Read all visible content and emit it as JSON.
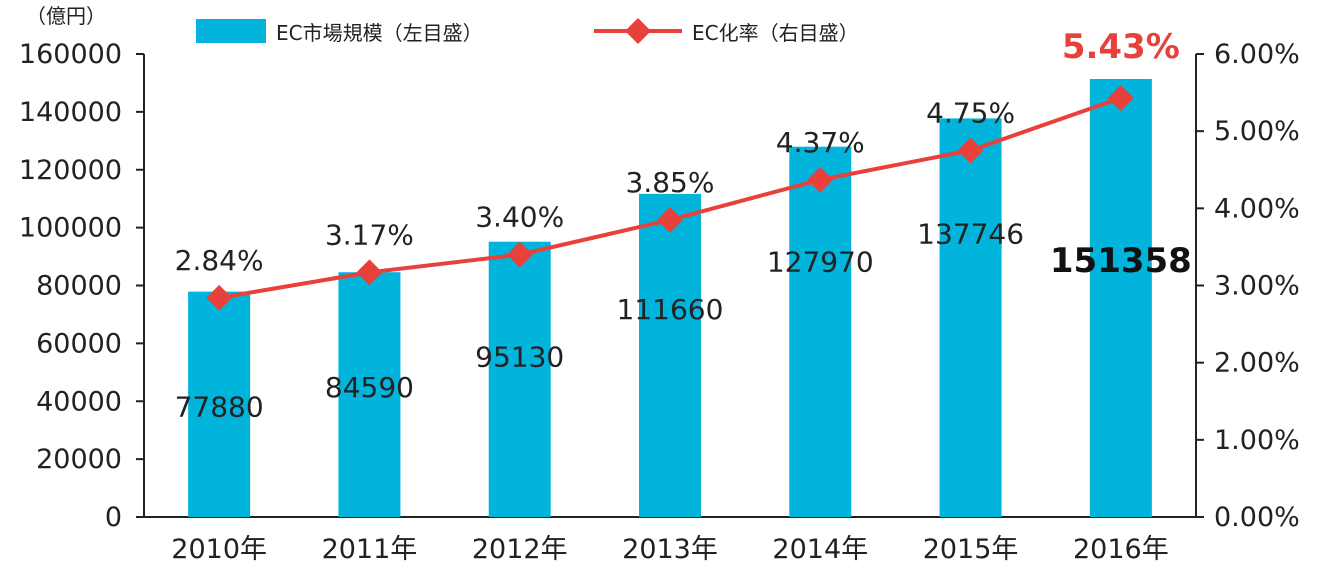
{
  "chart_data": {
    "type": "bar",
    "categories": [
      "2010年",
      "2011年",
      "2012年",
      "2013年",
      "2014年",
      "2015年",
      "2016年"
    ],
    "y_left_unit": "（億円）",
    "y_left_ticks": [
      "0",
      "20000",
      "40000",
      "60000",
      "80000",
      "100000",
      "120000",
      "140000",
      "160000"
    ],
    "y_right_ticks": [
      "0.00%",
      "1.00%",
      "2.00%",
      "3.00%",
      "4.00%",
      "5.00%",
      "6.00%"
    ],
    "ylim_left": [
      0,
      160000
    ],
    "ylim_right": [
      0,
      6
    ],
    "grid": false,
    "legend_position": "top",
    "series": [
      {
        "name": "EC市場規模（左目盛）",
        "type": "bar",
        "axis": "left",
        "color": "#00b4dc",
        "values": [
          77880,
          84590,
          95130,
          111660,
          127970,
          137746,
          151358
        ],
        "labels": [
          "77880",
          "84590",
          "95130",
          "111660",
          "127970",
          "137746",
          "151358"
        ]
      },
      {
        "name": "EC化率（右目盛）",
        "type": "line",
        "axis": "right",
        "color": "#e8413c",
        "marker": "diamond",
        "values": [
          2.84,
          3.17,
          3.4,
          3.85,
          4.37,
          4.75,
          5.43
        ],
        "labels": [
          "2.84%",
          "3.17%",
          "3.40%",
          "3.85%",
          "4.37%",
          "4.75%",
          "5.43%"
        ]
      }
    ],
    "highlight_index": 6,
    "highlight_color": "#e8413c"
  }
}
